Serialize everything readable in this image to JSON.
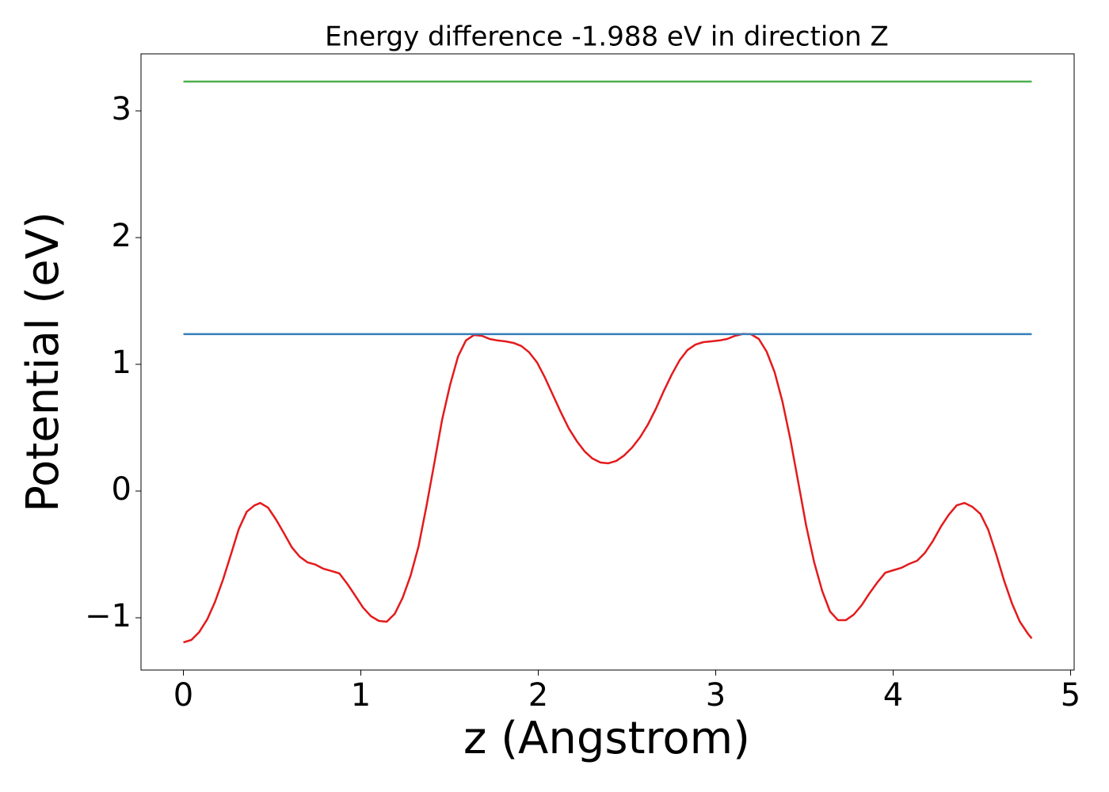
{
  "chart_data": {
    "type": "line",
    "title": "Energy difference -1.988 eV in direction Z",
    "xlabel": "z (Angstrom)",
    "ylabel": "Potential (eV)",
    "xlim": [
      -0.239,
      5.02
    ],
    "ylim": [
      -1.4125,
      3.45
    ],
    "xticks": [
      0,
      1,
      2,
      3,
      4,
      5
    ],
    "yticks": [
      {
        "value": -1,
        "label": "−1"
      },
      0,
      1,
      2,
      3
    ],
    "series": [
      {
        "color": "#e41a1c",
        "x": [
          0,
          0.045,
          0.089,
          0.134,
          0.178,
          0.223,
          0.268,
          0.312,
          0.357,
          0.401,
          0.433,
          0.477,
          0.522,
          0.566,
          0.611,
          0.656,
          0.7,
          0.745,
          0.789,
          0.834,
          0.879,
          0.923,
          0.968,
          1.012,
          1.057,
          1.102,
          1.146,
          1.191,
          1.235,
          1.28,
          1.325,
          1.369,
          1.414,
          1.458,
          1.503,
          1.548,
          1.592,
          1.637,
          1.682,
          1.726,
          1.771,
          1.815,
          1.86,
          1.905,
          1.949,
          1.994,
          2.038,
          2.083,
          2.128,
          2.172,
          2.217,
          2.261,
          2.306,
          2.351,
          2.395,
          2.44,
          2.484,
          2.529,
          2.574,
          2.618,
          2.663,
          2.707,
          2.752,
          2.796,
          2.841,
          2.886,
          2.93,
          2.975,
          3.02,
          3.064,
          3.109,
          3.153,
          3.198,
          3.243,
          3.287,
          3.332,
          3.376,
          3.421,
          3.466,
          3.51,
          3.555,
          3.6,
          3.644,
          3.689,
          3.733,
          3.778,
          3.823,
          3.867,
          3.912,
          3.956,
          4.001,
          4.046,
          4.09,
          4.135,
          4.179,
          4.224,
          4.269,
          4.313,
          4.358,
          4.402,
          4.447,
          4.492,
          4.536,
          4.581,
          4.625,
          4.67,
          4.714,
          4.759,
          4.781
        ],
        "values": [
          -1.194,
          -1.175,
          -1.113,
          -1.013,
          -0.875,
          -0.7,
          -0.5,
          -0.3,
          -0.163,
          -0.113,
          -0.094,
          -0.131,
          -0.225,
          -0.331,
          -0.444,
          -0.519,
          -0.563,
          -0.581,
          -0.613,
          -0.631,
          -0.65,
          -0.731,
          -0.825,
          -0.919,
          -0.988,
          -1.025,
          -1.031,
          -0.969,
          -0.844,
          -0.669,
          -0.438,
          -0.125,
          0.219,
          0.563,
          0.838,
          1.063,
          1.188,
          1.231,
          1.225,
          1.2,
          1.188,
          1.181,
          1.169,
          1.144,
          1.094,
          1.013,
          0.894,
          0.756,
          0.619,
          0.494,
          0.394,
          0.313,
          0.256,
          0.225,
          0.219,
          0.238,
          0.281,
          0.344,
          0.425,
          0.525,
          0.65,
          0.788,
          0.919,
          1.031,
          1.113,
          1.156,
          1.175,
          1.181,
          1.188,
          1.2,
          1.225,
          1.24,
          1.238,
          1.2,
          1.1,
          0.938,
          0.706,
          0.406,
          0.063,
          -0.275,
          -0.563,
          -0.788,
          -0.95,
          -1.019,
          -1.019,
          -0.975,
          -0.9,
          -0.806,
          -0.719,
          -0.644,
          -0.625,
          -0.606,
          -0.575,
          -0.55,
          -0.488,
          -0.394,
          -0.281,
          -0.188,
          -0.113,
          -0.094,
          -0.125,
          -0.181,
          -0.306,
          -0.5,
          -0.706,
          -0.888,
          -1.031,
          -1.125,
          -1.163
        ]
      },
      {
        "color": "#377eb8",
        "x": [
          0,
          4.781
        ],
        "values": [
          1.238,
          1.238
        ]
      },
      {
        "color": "#4daf4a",
        "x": [
          0,
          4.781
        ],
        "values": [
          3.231,
          3.231
        ]
      }
    ]
  }
}
